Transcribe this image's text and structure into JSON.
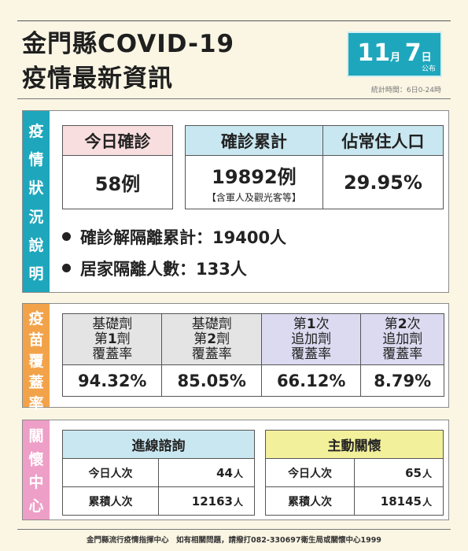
{
  "header": {
    "title_line1": "金門縣COVID-19",
    "title_line2": "疫情最新資訊",
    "date_month": "11",
    "date_month_unit": "月",
    "date_day": "7",
    "date_day_unit": "日",
    "date_pub": "公布",
    "stat_time": "統計時間：6日0-24時"
  },
  "situation": {
    "side_label": [
      "疫",
      "情",
      "狀",
      "況",
      "說",
      "明"
    ],
    "today_label": "今日確診",
    "today_value": "58例",
    "cumulative_label": "確診累計",
    "cumulative_value": "19892例",
    "cumulative_note": "【含軍人及觀光客等】",
    "ratio_label": "佔常住人口",
    "ratio_value": "29.95%",
    "bullet1": "確診解隔離累計：19400人",
    "bullet2": "居家隔離人數：133人"
  },
  "vaccine": {
    "side_label": [
      "疫",
      "苗",
      "覆",
      "蓋",
      "率"
    ],
    "columns": [
      {
        "l1": "基礎劑",
        "l2a": "第",
        "l2b": "1",
        "l2c": "劑",
        "l3": "覆蓋率",
        "value": "94.32%"
      },
      {
        "l1": "基礎劑",
        "l2a": "第",
        "l2b": "2",
        "l2c": "劑",
        "l3": "覆蓋率",
        "value": "85.05%"
      },
      {
        "l1a": "第",
        "l1b": "1",
        "l1c": "次",
        "l2": "追加劑",
        "l3": "覆蓋率",
        "value": "66.12%"
      },
      {
        "l1a": "第",
        "l1b": "2",
        "l1c": "次",
        "l2": "追加劑",
        "l3": "覆蓋率",
        "value": "8.79%"
      }
    ]
  },
  "care": {
    "side_label": [
      "關",
      "懷",
      "中",
      "心"
    ],
    "inbound": {
      "title": "進線諮詢",
      "today_label": "今日人次",
      "today_value": "44",
      "total_label": "累積人次",
      "total_value": "12163",
      "unit": "人"
    },
    "outreach": {
      "title": "主動關懷",
      "today_label": "今日人次",
      "today_value": "65",
      "total_label": "累積人次",
      "total_value": "18145",
      "unit": "人"
    }
  },
  "footer": {
    "text": "金門縣流行疫情指揮中心　如有相關問題，請撥打082-330697衛生局或關懷中心1999"
  }
}
